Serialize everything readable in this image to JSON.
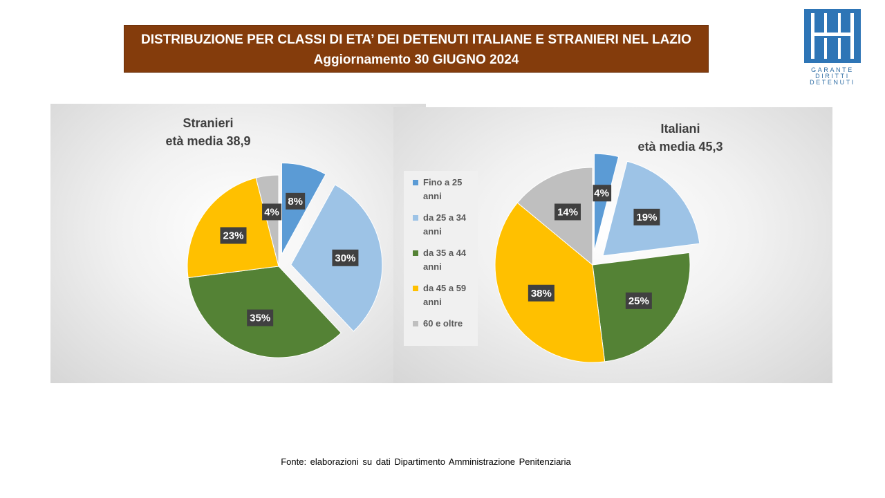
{
  "header": {
    "title_line1": "DISTRIBUZIONE PER CLASSI DI ETA’ DEI DETENUTI ITALIANE E STRANIERI NEL LAZIO",
    "title_line2": "Aggiornamento 30 GIUGNO 2024"
  },
  "logo": {
    "line1": "GARANTE",
    "line2": "DIRITTI",
    "line3": "DETENUTI"
  },
  "colors": {
    "title_bg": "#843c0c",
    "fino_25": "#5b9bd5",
    "da_25_34": "#9dc3e6",
    "da_35_44": "#548235",
    "da_45_59": "#ffc000",
    "oltre_60": "#bfbfbf",
    "label_bg": "#404040"
  },
  "legend": {
    "items": [
      {
        "label": "Fino a 25 anni",
        "color": "#5b9bd5"
      },
      {
        "label": "da 25 a 34 anni",
        "color": "#9dc3e6"
      },
      {
        "label": "da 35 a 44 anni",
        "color": "#548235"
      },
      {
        "label": "da 45 a 59 anni",
        "color": "#ffc000"
      },
      {
        "label": "60 e oltre",
        "color": "#bfbfbf"
      }
    ]
  },
  "chart_data": [
    {
      "type": "pie",
      "title": "Stranieri",
      "subtitle": "età media 38,9",
      "categories": [
        "Fino a 25 anni",
        "da 25 a 34 anni",
        "da 35 a 44 anni",
        "da 45 a 59 anni",
        "60 e oltre"
      ],
      "values": [
        8,
        30,
        35,
        23,
        4
      ],
      "value_labels": [
        "8%",
        "30%",
        "35%",
        "23%",
        "4%"
      ],
      "exploded": [
        true,
        true,
        false,
        false,
        false
      ]
    },
    {
      "type": "pie",
      "title": "Italiani",
      "subtitle": "età media 45,3",
      "categories": [
        "Fino a 25 anni",
        "da 25 a 34 anni",
        "da 35 a 44 anni",
        "da 45 a 59 anni",
        "60 e oltre"
      ],
      "values": [
        4,
        19,
        25,
        38,
        14
      ],
      "value_labels": [
        "4%",
        "19%",
        "25%",
        "38%",
        "14%"
      ],
      "exploded": [
        true,
        true,
        false,
        false,
        false
      ]
    }
  ],
  "footer": {
    "source": "Fonte: elaborazioni su dati Dipartimento Amministrazione Penitenziaria"
  }
}
